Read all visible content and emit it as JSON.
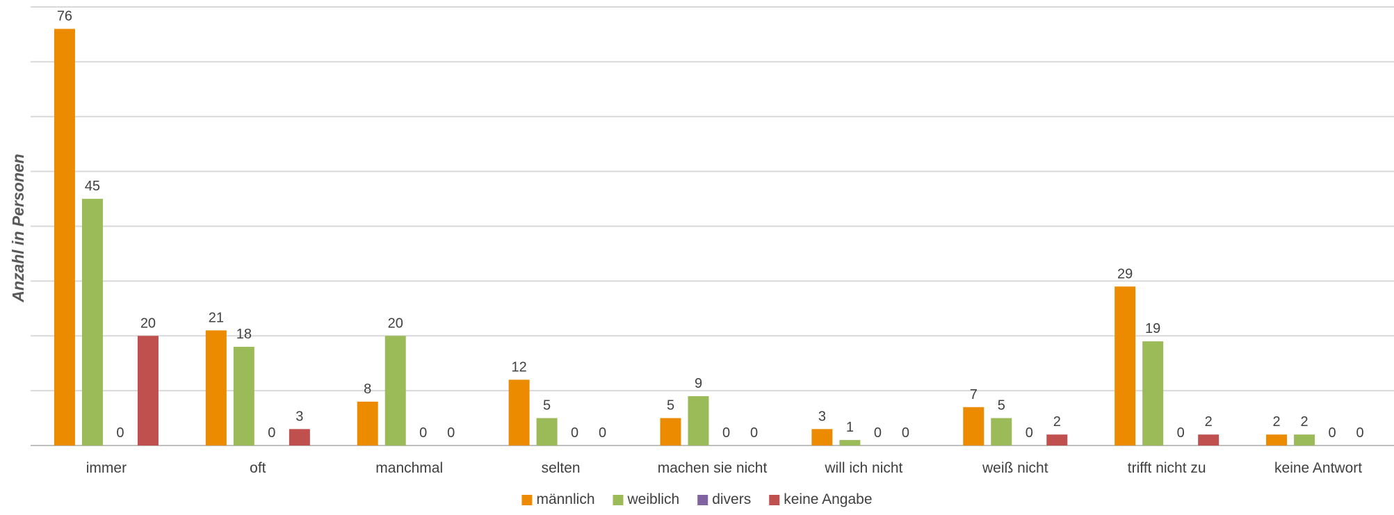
{
  "chart_data": {
    "type": "bar",
    "title": "",
    "xlabel": "",
    "ylabel": "Anzahl in Personen",
    "ylim": [
      0,
      80
    ],
    "grid": true,
    "legend_position": "bottom",
    "categories": [
      "immer",
      "oft",
      "manchmal",
      "selten",
      "machen sie nicht",
      "will ich nicht",
      "weiß nicht",
      "trifft nicht zu",
      "keine Antwort"
    ],
    "series": [
      {
        "name": "männlich",
        "color": "#ed8b00",
        "values": [
          76,
          21,
          8,
          12,
          5,
          3,
          7,
          29,
          2
        ]
      },
      {
        "name": "weiblich",
        "color": "#9bbb59",
        "values": [
          45,
          18,
          20,
          5,
          9,
          1,
          5,
          19,
          2
        ]
      },
      {
        "name": "divers",
        "color": "#8064a2",
        "values": [
          0,
          0,
          0,
          0,
          0,
          0,
          0,
          0,
          0
        ]
      },
      {
        "name": "keine Angabe",
        "color": "#c0504d",
        "values": [
          20,
          3,
          0,
          0,
          0,
          0,
          2,
          2,
          0
        ]
      }
    ]
  }
}
